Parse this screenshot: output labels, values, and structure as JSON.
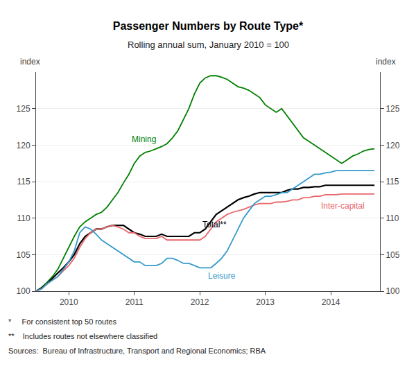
{
  "chart_data": {
    "type": "line",
    "title": "Passenger Numbers by Route Type*",
    "subtitle": "Rolling annual sum, January 2010 = 100",
    "ylabel": "index",
    "y2label": "index",
    "footnotes": [
      "*     For consistent top 50 routes",
      "**    Includes routes not elsewhere classified",
      "Sources:  Bureau of Infrastructure, Transport and Regional Economics; RBA"
    ],
    "xlim": [
      2009.5,
      2014.75
    ],
    "xticks": [
      2010,
      2011,
      2012,
      2013,
      2014
    ],
    "ylim": [
      100,
      130
    ],
    "yticks": [
      100,
      105,
      110,
      115,
      120,
      125
    ],
    "y2lim": [
      100,
      130
    ],
    "y2ticks": [
      100,
      105,
      110,
      115,
      120,
      125
    ],
    "grid": true,
    "x": [
      2009.5,
      2009.583,
      2009.667,
      2009.75,
      2009.833,
      2009.917,
      2010.0,
      2010.083,
      2010.167,
      2010.25,
      2010.333,
      2010.417,
      2010.5,
      2010.583,
      2010.667,
      2010.75,
      2010.833,
      2010.917,
      2011.0,
      2011.083,
      2011.167,
      2011.25,
      2011.333,
      2011.417,
      2011.5,
      2011.583,
      2011.667,
      2011.75,
      2011.833,
      2011.917,
      2012.0,
      2012.083,
      2012.167,
      2012.25,
      2012.333,
      2012.417,
      2012.5,
      2012.583,
      2012.667,
      2012.75,
      2012.833,
      2012.917,
      2013.0,
      2013.083,
      2013.167,
      2013.25,
      2013.333,
      2013.417,
      2013.5,
      2013.583,
      2013.667,
      2013.75,
      2013.833,
      2013.917,
      2014.0,
      2014.083,
      2014.167,
      2014.25,
      2014.333,
      2014.417,
      2014.5,
      2014.583,
      2014.667
    ],
    "series": [
      {
        "name": "Mining",
        "color": "#008000",
        "values": [
          100.0,
          100.5,
          101.2,
          102.0,
          103.0,
          104.5,
          106.0,
          107.5,
          108.8,
          109.5,
          110.0,
          110.5,
          110.8,
          111.5,
          112.5,
          113.5,
          114.8,
          116.0,
          117.5,
          118.5,
          119.0,
          119.2,
          119.5,
          119.8,
          120.2,
          121.0,
          122.0,
          123.5,
          125.0,
          127.0,
          128.5,
          129.2,
          129.5,
          129.5,
          129.3,
          129.0,
          128.5,
          128.0,
          127.8,
          127.5,
          127.0,
          126.5,
          125.5,
          125.0,
          124.5,
          125.0,
          124.0,
          123.0,
          122.0,
          121.0,
          120.5,
          120.0,
          119.5,
          119.0,
          118.5,
          118.0,
          117.5,
          118.0,
          118.5,
          118.8,
          119.2,
          119.4,
          119.5
        ]
      },
      {
        "name": "Total**",
        "color": "#000000",
        "values": [
          100.0,
          100.4,
          101.0,
          101.8,
          102.5,
          103.2,
          104.0,
          105.0,
          106.5,
          107.5,
          108.0,
          108.5,
          108.5,
          108.8,
          109.0,
          109.0,
          109.0,
          108.5,
          108.0,
          107.8,
          107.5,
          107.5,
          107.5,
          107.8,
          107.5,
          107.5,
          107.5,
          107.5,
          107.5,
          108.0,
          108.0,
          108.5,
          109.5,
          110.5,
          111.0,
          111.5,
          112.0,
          112.5,
          112.8,
          113.0,
          113.3,
          113.5,
          113.5,
          113.5,
          113.5,
          113.5,
          113.8,
          114.0,
          114.0,
          114.2,
          114.2,
          114.3,
          114.3,
          114.5,
          114.5,
          114.5,
          114.5,
          114.5,
          114.5,
          114.5,
          114.5,
          114.5,
          114.5
        ]
      },
      {
        "name": "Inter-capital",
        "color": "#e8666a",
        "values": [
          100.0,
          100.3,
          101.0,
          101.5,
          102.0,
          102.8,
          103.5,
          104.5,
          106.0,
          107.2,
          108.0,
          108.5,
          108.5,
          108.8,
          109.0,
          108.8,
          108.5,
          108.0,
          108.0,
          107.5,
          107.2,
          107.2,
          107.2,
          107.5,
          107.0,
          107.0,
          107.0,
          107.0,
          107.0,
          107.0,
          107.0,
          107.5,
          108.5,
          109.5,
          110.0,
          110.5,
          110.8,
          111.0,
          111.2,
          111.5,
          111.8,
          112.0,
          112.0,
          112.0,
          112.2,
          112.2,
          112.3,
          112.5,
          112.5,
          112.8,
          112.8,
          113.0,
          113.0,
          113.2,
          113.2,
          113.2,
          113.3,
          113.3,
          113.3,
          113.3,
          113.3,
          113.3,
          113.3
        ]
      },
      {
        "name": "Leisure",
        "color": "#3399cc",
        "values": [
          100.0,
          100.3,
          101.0,
          101.5,
          102.0,
          103.0,
          104.0,
          105.5,
          108.0,
          108.8,
          108.5,
          107.8,
          107.0,
          106.5,
          106.0,
          105.5,
          105.0,
          104.5,
          104.0,
          104.0,
          103.5,
          103.5,
          103.5,
          103.8,
          104.5,
          104.5,
          104.2,
          103.8,
          103.8,
          103.5,
          103.2,
          103.2,
          103.2,
          103.8,
          104.5,
          105.5,
          107.0,
          108.5,
          110.0,
          111.0,
          112.0,
          112.5,
          113.0,
          113.0,
          113.2,
          113.5,
          113.5,
          114.0,
          114.5,
          115.0,
          115.5,
          116.0,
          116.0,
          116.2,
          116.3,
          116.5,
          116.5,
          116.5,
          116.5,
          116.5,
          116.5,
          116.5,
          116.5
        ]
      }
    ]
  }
}
